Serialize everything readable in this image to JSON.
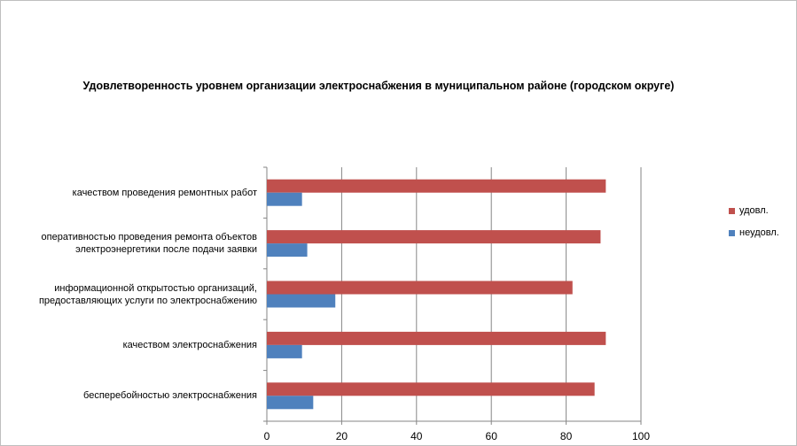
{
  "chart_data": {
    "type": "bar",
    "orientation": "horizontal",
    "title": "Удовлетворенность уровнем организации электроснабжения в муниципальном районе (городском округе)",
    "categories": [
      "качеством проведения ремонтных работ",
      "оперативностью проведения ремонта объектов электроэнергетики после подачи заявки",
      "информационной открытостью организаций, предоставляющих услуги по электроснабжению",
      "качеством электроснабжения",
      "бесперебойностью электроснабжения"
    ],
    "category_lines": [
      [
        "качеством проведения ремонтных работ"
      ],
      [
        "оперативностью проведения ремонта объектов",
        "электроэнергетики после подачи заявки"
      ],
      [
        "информационной открытостью организаций,",
        "предоставляющих услуги по электроснабжению"
      ],
      [
        "качеством электроснабжения"
      ],
      [
        "бесперебойностью электроснабжения"
      ]
    ],
    "series": [
      {
        "name": "удовл.",
        "color": "#c0504d",
        "values": [
          90.6,
          89.2,
          81.7,
          90.6,
          87.6
        ]
      },
      {
        "name": "неудовл.",
        "color": "#4f81bd",
        "values": [
          9.4,
          10.8,
          18.3,
          9.4,
          12.4
        ]
      }
    ],
    "xlim": [
      0,
      100
    ],
    "xticks": [
      "0",
      "20",
      "40",
      "60",
      "80",
      "100"
    ],
    "xgrid": true,
    "legend": "right"
  }
}
